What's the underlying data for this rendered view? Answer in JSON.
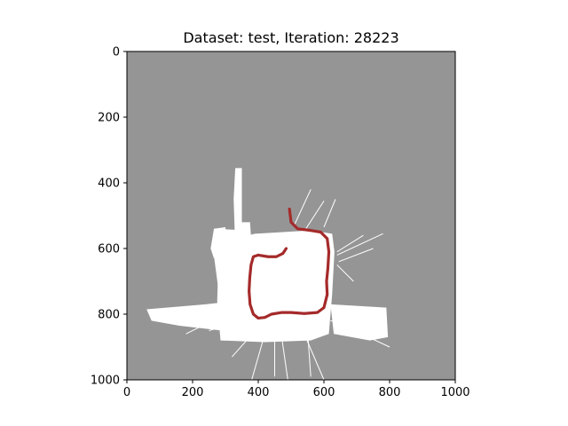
{
  "chart_data": {
    "type": "map",
    "title": "Dataset: test, Iteration: 28223",
    "xlim": [
      0,
      1000
    ],
    "ylim": [
      0,
      1000
    ],
    "y_inverted": true,
    "xticks": [
      0,
      200,
      400,
      600,
      800,
      1000
    ],
    "yticks": [
      0,
      200,
      400,
      600,
      800,
      1000
    ],
    "xtick_labels": [
      "0",
      "200",
      "400",
      "600",
      "800",
      "1000"
    ],
    "ytick_labels": [
      "0",
      "200",
      "400",
      "600",
      "800",
      "1000"
    ],
    "background_color": "#959595",
    "free_space_color": "#ffffff",
    "trajectory_color": "#a52a2a",
    "occupancy_regions": [
      [
        [
          330,
          355
        ],
        [
          350,
          355
        ],
        [
          350,
          520
        ],
        [
          375,
          520
        ],
        [
          380,
          600
        ],
        [
          360,
          630
        ],
        [
          330,
          600
        ],
        [
          325,
          450
        ]
      ],
      [
        [
          265,
          540
        ],
        [
          370,
          545
        ],
        [
          380,
          610
        ],
        [
          380,
          655
        ],
        [
          370,
          700
        ],
        [
          372,
          820
        ],
        [
          305,
          830
        ],
        [
          280,
          820
        ],
        [
          278,
          720
        ],
        [
          262,
          600
        ]
      ],
      [
        [
          280,
          580
        ],
        [
          390,
          555
        ],
        [
          560,
          545
        ],
        [
          625,
          555
        ],
        [
          632,
          610
        ],
        [
          625,
          740
        ],
        [
          615,
          860
        ],
        [
          560,
          880
        ],
        [
          420,
          885
        ],
        [
          285,
          880
        ],
        [
          275,
          760
        ]
      ],
      [
        [
          60,
          785
        ],
        [
          240,
          770
        ],
        [
          285,
          765
        ],
        [
          290,
          850
        ],
        [
          160,
          835
        ],
        [
          75,
          820
        ]
      ],
      [
        [
          620,
          770
        ],
        [
          790,
          780
        ],
        [
          795,
          870
        ],
        [
          740,
          880
        ],
        [
          630,
          860
        ]
      ],
      [
        [
          265,
          540
        ],
        [
          300,
          535
        ],
        [
          305,
          615
        ],
        [
          265,
          630
        ],
        [
          255,
          600
        ]
      ]
    ],
    "occupancy_rays": [
      [
        [
          510,
          528
        ],
        [
          560,
          420
        ]
      ],
      [
        [
          545,
          540
        ],
        [
          600,
          455
        ]
      ],
      [
        [
          600,
          535
        ],
        [
          635,
          450
        ]
      ],
      [
        [
          640,
          610
        ],
        [
          720,
          560
        ]
      ],
      [
        [
          640,
          620
        ],
        [
          780,
          555
        ]
      ],
      [
        [
          645,
          640
        ],
        [
          750,
          600
        ]
      ],
      [
        [
          640,
          650
        ],
        [
          690,
          700
        ]
      ],
      [
        [
          350,
          820
        ],
        [
          250,
          850
        ]
      ],
      [
        [
          400,
          840
        ],
        [
          320,
          930
        ]
      ],
      [
        [
          420,
          860
        ],
        [
          380,
          1000
        ]
      ],
      [
        [
          450,
          860
        ],
        [
          450,
          990
        ]
      ],
      [
        [
          470,
          860
        ],
        [
          490,
          1000
        ]
      ],
      [
        [
          540,
          860
        ],
        [
          600,
          1000
        ]
      ],
      [
        [
          620,
          820
        ],
        [
          760,
          850
        ]
      ],
      [
        [
          650,
          830
        ],
        [
          800,
          900
        ]
      ],
      [
        [
          300,
          800
        ],
        [
          180,
          860
        ]
      ],
      [
        [
          550,
          850
        ],
        [
          560,
          990
        ]
      ]
    ],
    "trajectory": [
      [
        495,
        480
      ],
      [
        500,
        520
      ],
      [
        520,
        540
      ],
      [
        560,
        545
      ],
      [
        590,
        550
      ],
      [
        610,
        570
      ],
      [
        615,
        610
      ],
      [
        612,
        660
      ],
      [
        608,
        700
      ],
      [
        610,
        740
      ],
      [
        600,
        780
      ],
      [
        580,
        795
      ],
      [
        540,
        798
      ],
      [
        500,
        795
      ],
      [
        470,
        795
      ],
      [
        440,
        800
      ],
      [
        420,
        810
      ],
      [
        400,
        812
      ],
      [
        385,
        800
      ],
      [
        375,
        770
      ],
      [
        372,
        730
      ],
      [
        374,
        690
      ],
      [
        378,
        650
      ],
      [
        385,
        625
      ],
      [
        400,
        620
      ],
      [
        430,
        625
      ],
      [
        455,
        625
      ],
      [
        475,
        615
      ],
      [
        485,
        600
      ]
    ]
  }
}
